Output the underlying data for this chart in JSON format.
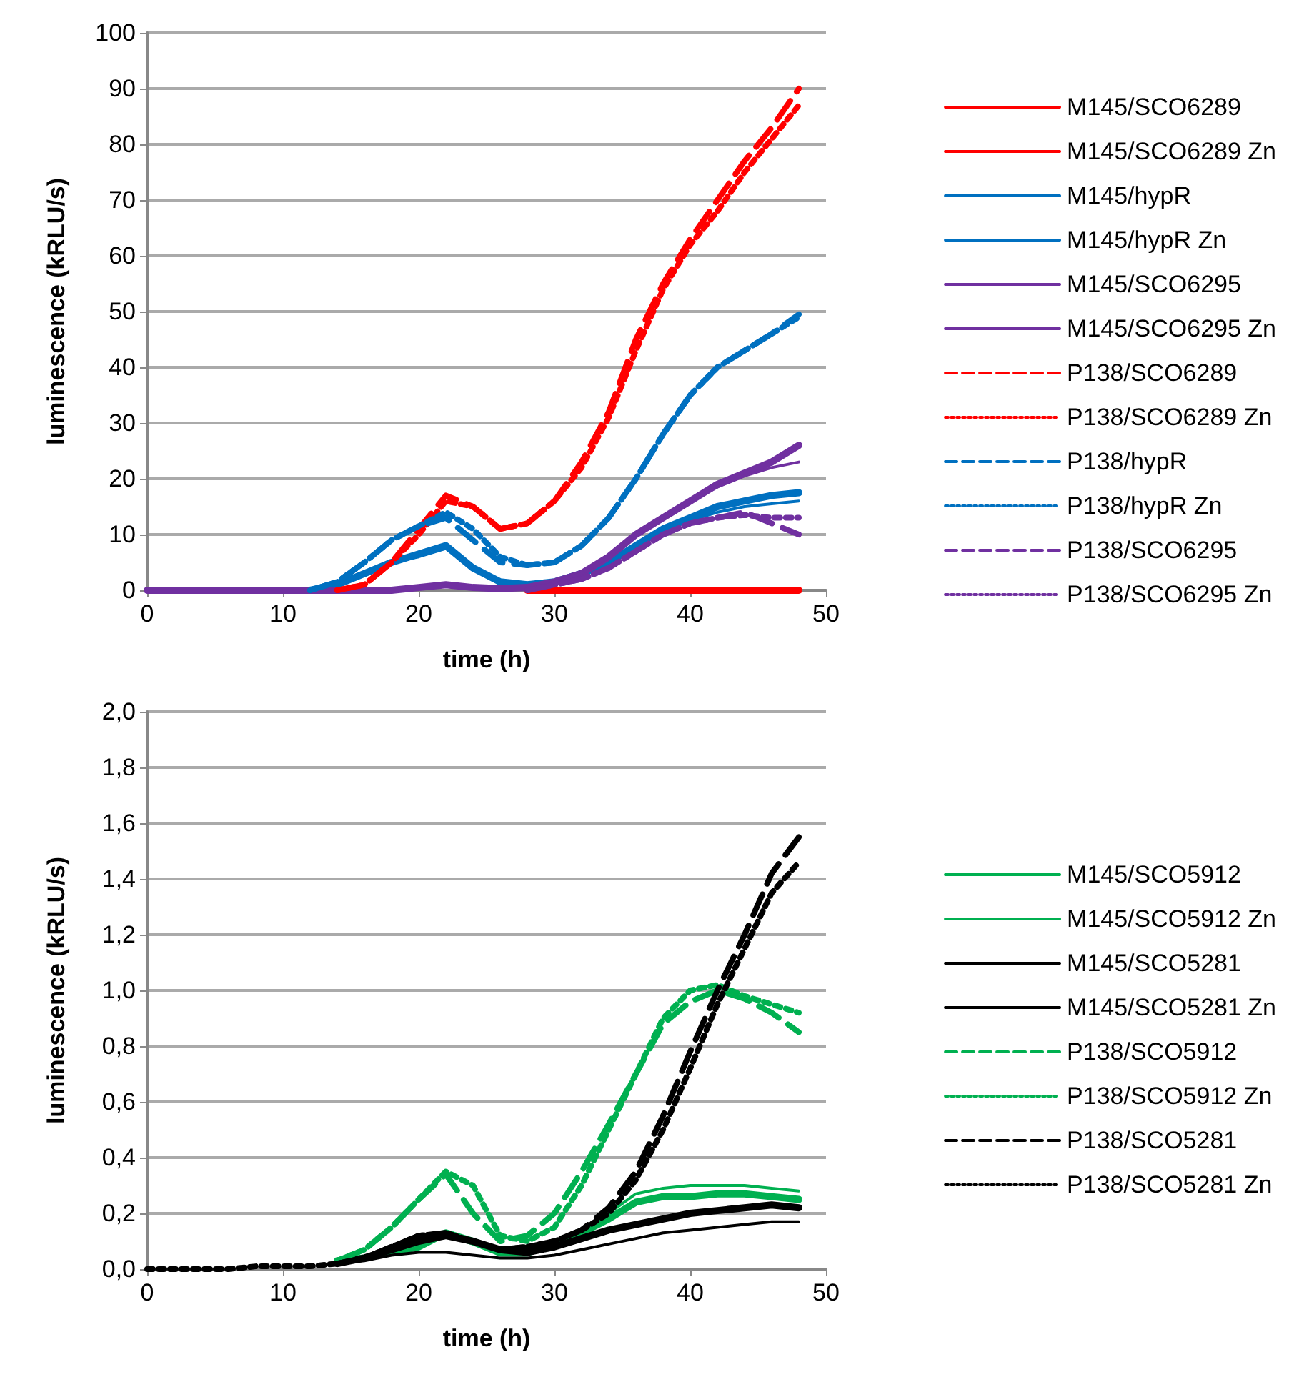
{
  "chart_data": [
    {
      "type": "line",
      "xlabel": "time (h)",
      "ylabel": "luminescence (kRLU/s)",
      "x": [
        0,
        2,
        4,
        6,
        8,
        10,
        12,
        14,
        16,
        18,
        20,
        22,
        24,
        26,
        28,
        30,
        32,
        34,
        36,
        38,
        40,
        42,
        44,
        46,
        48
      ],
      "xlim": [
        0,
        50
      ],
      "xticks": [
        0,
        10,
        20,
        30,
        40,
        50
      ],
      "ylim": [
        0,
        100
      ],
      "yticks": [
        0,
        10,
        20,
        30,
        40,
        50,
        60,
        70,
        80,
        90,
        100
      ],
      "grid": "y",
      "legend": "right",
      "series": [
        {
          "name": "M145/SCO6289",
          "color": "#ff0000",
          "line_style": "solid",
          "values": [
            null,
            null,
            null,
            null,
            null,
            null,
            null,
            null,
            null,
            null,
            null,
            null,
            null,
            null,
            0,
            0,
            0,
            0,
            0,
            0,
            0,
            0,
            0,
            0,
            0
          ]
        },
        {
          "name": "M145/SCO6289 Zn",
          "color": "#ff0000",
          "line_style": "solid",
          "values": [
            null,
            null,
            null,
            null,
            null,
            null,
            null,
            null,
            null,
            null,
            null,
            null,
            null,
            null,
            null,
            null,
            null,
            null,
            null,
            null,
            null,
            null,
            null,
            null,
            null
          ]
        },
        {
          "name": "M145/hypR",
          "color": "#0070c0",
          "line_style": "solid",
          "values": [
            null,
            null,
            null,
            null,
            null,
            null,
            0,
            1,
            3,
            5,
            6.5,
            8,
            4,
            1.5,
            1,
            1.5,
            3,
            5,
            8,
            11,
            13,
            15,
            16,
            17,
            17.5
          ]
        },
        {
          "name": "M145/hypR Zn",
          "color": "#0070c0",
          "line_style": "solid",
          "values": [
            null,
            null,
            null,
            null,
            null,
            null,
            0,
            1,
            3,
            5,
            6,
            7.5,
            4,
            1.5,
            1,
            1.5,
            3,
            5,
            8,
            10.5,
            12.5,
            14,
            15,
            15.5,
            16
          ]
        },
        {
          "name": "M145/SCO6295",
          "color": "#7030a0",
          "line_style": "solid",
          "values": [
            0,
            0,
            0,
            0,
            0,
            0,
            0,
            0,
            0,
            0,
            0.5,
            1,
            0.5,
            0.3,
            0.5,
            1.5,
            3,
            6,
            10,
            13,
            16,
            19,
            21,
            23,
            26
          ]
        },
        {
          "name": "M145/SCO6295 Zn",
          "color": "#7030a0",
          "line_style": "solid",
          "values": [
            null,
            null,
            null,
            null,
            null,
            null,
            null,
            null,
            null,
            null,
            null,
            null,
            null,
            null,
            null,
            1.5,
            3,
            6,
            10,
            13,
            16,
            18.5,
            20.5,
            22,
            23
          ]
        },
        {
          "name": "P138/SCO6289",
          "color": "#ff0000",
          "line_style": "dashed",
          "values": [
            null,
            null,
            null,
            null,
            null,
            null,
            null,
            0,
            1,
            5,
            11,
            17,
            15,
            11,
            12,
            16,
            23,
            32,
            45,
            55,
            63,
            70,
            77,
            83,
            90
          ]
        },
        {
          "name": "P138/SCO6289 Zn",
          "color": "#ff0000",
          "line_style": "dotted",
          "values": [
            null,
            null,
            null,
            null,
            null,
            null,
            null,
            0,
            1,
            5,
            10,
            16,
            15,
            11,
            12,
            16,
            22,
            31,
            43,
            54,
            62,
            68,
            75,
            81,
            87
          ]
        },
        {
          "name": "P138/hypR",
          "color": "#0070c0",
          "line_style": "dashed",
          "values": [
            null,
            null,
            null,
            null,
            null,
            null,
            0,
            1.5,
            5,
            9,
            11.5,
            13,
            9,
            5,
            4.5,
            5,
            8,
            13,
            20,
            28,
            35,
            40,
            43,
            46,
            49.5
          ]
        },
        {
          "name": "P138/hypR Zn",
          "color": "#0070c0",
          "line_style": "dotted",
          "values": [
            null,
            null,
            null,
            null,
            null,
            null,
            0,
            1.5,
            5,
            9,
            11.5,
            14,
            11,
            6,
            4.5,
            5,
            8,
            13,
            20,
            28,
            35,
            40,
            43,
            46,
            49
          ]
        },
        {
          "name": "P138/SCO6295",
          "color": "#7030a0",
          "line_style": "dashed",
          "values": [
            null,
            null,
            null,
            null,
            null,
            null,
            null,
            null,
            null,
            null,
            null,
            null,
            null,
            null,
            0,
            1,
            2,
            4,
            7,
            10,
            12,
            13,
            14,
            12,
            10
          ]
        },
        {
          "name": "P138/SCO6295 Zn",
          "color": "#7030a0",
          "line_style": "dotted",
          "values": [
            null,
            null,
            null,
            null,
            null,
            null,
            null,
            null,
            null,
            null,
            null,
            null,
            null,
            null,
            0,
            1,
            2,
            4,
            7,
            10,
            12,
            13,
            13.5,
            13,
            13
          ]
        }
      ]
    },
    {
      "type": "line",
      "xlabel": "time (h)",
      "ylabel": "luminescence (kRLU/s)",
      "x": [
        0,
        2,
        4,
        6,
        8,
        10,
        12,
        14,
        16,
        18,
        20,
        22,
        24,
        26,
        28,
        30,
        32,
        34,
        36,
        38,
        40,
        42,
        44,
        46,
        48
      ],
      "xlim": [
        0,
        50
      ],
      "xticks": [
        0,
        10,
        20,
        30,
        40,
        50
      ],
      "ylim": [
        0,
        2
      ],
      "yticks": [
        {
          "value": 0,
          "label": "0,0"
        },
        {
          "value": 0.2,
          "label": "0,2"
        },
        {
          "value": 0.4,
          "label": "0,4"
        },
        {
          "value": 0.6,
          "label": "0,6"
        },
        {
          "value": 0.8,
          "label": "0,8"
        },
        {
          "value": 1,
          "label": "1,0"
        },
        {
          "value": 1.2,
          "label": "1,2"
        },
        {
          "value": 1.4,
          "label": "1,4"
        },
        {
          "value": 1.6,
          "label": "1,6"
        },
        {
          "value": 1.8,
          "label": "1,8"
        },
        {
          "value": 2,
          "label": "2,0"
        }
      ],
      "grid": "y",
      "legend": "right",
      "series": [
        {
          "name": "M145/SCO5912",
          "color": "#00b050",
          "line_style": "solid",
          "values": [
            null,
            null,
            null,
            null,
            null,
            null,
            null,
            0.03,
            0.04,
            0.06,
            0.08,
            0.13,
            0.1,
            0.06,
            0.06,
            0.09,
            0.13,
            0.18,
            0.24,
            0.26,
            0.26,
            0.27,
            0.27,
            0.26,
            0.25
          ]
        },
        {
          "name": "M145/SCO5912 Zn",
          "color": "#00b050",
          "line_style": "solid",
          "values": [
            null,
            null,
            null,
            null,
            null,
            null,
            null,
            0.03,
            0.04,
            0.06,
            0.08,
            0.12,
            0.09,
            0.05,
            0.05,
            0.09,
            0.14,
            0.2,
            0.27,
            0.29,
            0.3,
            0.3,
            0.3,
            0.29,
            0.28
          ]
        },
        {
          "name": "M145/SCO5281",
          "color": "#000000",
          "line_style": "solid",
          "values": [
            null,
            null,
            null,
            null,
            null,
            null,
            null,
            0.02,
            0.04,
            0.07,
            0.1,
            0.12,
            0.1,
            0.07,
            0.06,
            0.08,
            0.11,
            0.14,
            0.16,
            0.18,
            0.2,
            0.21,
            0.22,
            0.23,
            0.22
          ]
        },
        {
          "name": "M145/SCO5281 Zn",
          "color": "#000000",
          "line_style": "solid",
          "values": [
            null,
            null,
            null,
            null,
            null,
            null,
            null,
            0.02,
            0.03,
            0.05,
            0.06,
            0.06,
            0.05,
            0.04,
            0.04,
            0.05,
            0.07,
            0.09,
            0.11,
            0.13,
            0.14,
            0.15,
            0.16,
            0.17,
            0.17
          ]
        },
        {
          "name": "P138/SCO5912",
          "color": "#00b050",
          "line_style": "dashed",
          "values": [
            null,
            null,
            null,
            null,
            null,
            null,
            null,
            0.03,
            0.07,
            0.15,
            0.25,
            0.34,
            0.2,
            0.1,
            0.12,
            0.2,
            0.35,
            0.52,
            0.7,
            0.88,
            0.96,
            1.0,
            0.97,
            0.92,
            0.85
          ]
        },
        {
          "name": "P138/SCO5912 Zn",
          "color": "#00b050",
          "line_style": "dotted",
          "values": [
            null,
            null,
            null,
            null,
            null,
            null,
            null,
            0.03,
            0.07,
            0.15,
            0.25,
            0.35,
            0.3,
            0.12,
            0.1,
            0.15,
            0.3,
            0.5,
            0.7,
            0.9,
            1.0,
            1.02,
            0.98,
            0.95,
            0.92
          ]
        },
        {
          "name": "P138/SCO5281",
          "color": "#000000",
          "line_style": "dashed",
          "values": [
            null,
            null,
            null,
            null,
            null,
            null,
            null,
            0.02,
            0.04,
            0.08,
            0.12,
            0.13,
            0.1,
            0.07,
            0.08,
            0.1,
            0.14,
            0.22,
            0.35,
            0.55,
            0.78,
            1.0,
            1.2,
            1.42,
            1.55
          ]
        },
        {
          "name": "P138/SCO5281 Zn",
          "color": "#000000",
          "line_style": "dotted",
          "values": [
            0,
            0,
            0,
            0,
            0.01,
            0.01,
            0.01,
            0.02,
            0.04,
            0.08,
            0.12,
            0.13,
            0.1,
            0.07,
            0.08,
            0.1,
            0.14,
            0.2,
            0.32,
            0.5,
            0.72,
            0.95,
            1.15,
            1.35,
            1.46
          ]
        }
      ]
    }
  ]
}
